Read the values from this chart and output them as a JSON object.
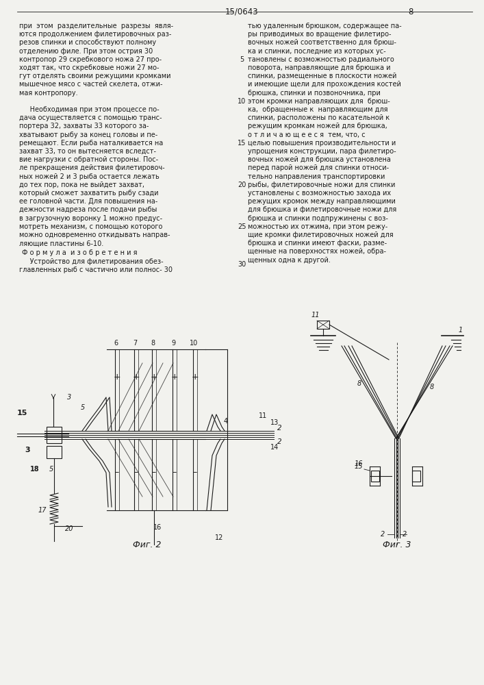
{
  "page_number": "15/0643",
  "page_num_right": "8",
  "bg_color": "#f2f2ee",
  "text_color": "#1a1a1a",
  "left_column_text": [
    "при  этом  разделительные  разрезы  явля-",
    "ются продолжением филетировочных раз-",
    "резов спинки и способствуют полному",
    "отделению филе. При этом острия 30",
    "контропор 29 скребкового ножа 27 про-",
    "ходят так, что скребковые ножи 27 мо-",
    "гут отделять своими режущими кромками",
    "мышечное мясо с частей скелета, отжи-",
    "мая контропору.",
    "",
    "     Необходимая при этом процессе по-",
    "дача осуществляется с помощью транс-",
    "портера 32, захваты 33 которого за-",
    "хватывают рыбу за конец головы и пе-",
    "ремещают. Если рыба наталкивается на",
    "захват 33, то он вытесняется вследст-",
    "вие нагрузки с обратной стороны. Пос-",
    "ле прекращения действия филетировоч-",
    "ных ножей 2 и 3 рыба остается лежать",
    "до тех пор, пока не выйдет захват,",
    "который сможет захватить рыбу сзади",
    "ее головной части. Для повышения на-",
    "дежности надреза после подачи рыбы",
    "в загрузочную воронку 1 можно предус-",
    "мотреть механизм, с помощью которого",
    "можно одновременно откидывать направ-"
  ],
  "left_last_line": "ляющие пластины 6-10.",
  "formula_header": "Ф о р м у л а  и з о б р е т е н и я",
  "formula_text": "     Устройство для филетирования обез-",
  "formula_text2": "главленных рыб с частично или полнос-",
  "right_column_text": [
    "тью удаленным брюшком, содержащее па-",
    "ры приводимых во вращение филетиро-",
    "вочных ножей соответственно для брюш-",
    "ка и спинки, последние из которых ус-",
    "тановлены с возможностью радиального",
    "поворота, направляющие для брюшка и",
    "спинки, размещенные в плоскости ножей",
    "и имеющие щели для прохождения костей",
    "брюшка, спинки и позвоночника, при",
    "этом кромки направляющих для  брюш-",
    "ка,  обращенные к  направляющим для",
    "спинки, расположены по касательной к",
    "режущим кромкам ножей для брюшка,",
    "о т л и ч а ю щ е е с я  тем, что, с",
    "целью повышения производительности и",
    "упрощения конструкции, пара филетиро-",
    "вочных ножей для брюшка установлена",
    "перед парой ножей для спинки относи-",
    "тельно направления транспортировки",
    "рыбы, филетировочные ножи для спинки",
    "установлены с возможностью захода их",
    "режущих кромок между направляющими",
    "для брюшка и филетировочные ножи для",
    "брюшка и спинки подпружинены с воз-",
    "можностью их отжима, при этом режу-"
  ],
  "right_last_lines": [
    "щие кромки филетировочных ножей для",
    "брюшка и спинки имеют фаски, разме-",
    "щенные на поверхностях ножей, обра-",
    "щенных одна к другой."
  ],
  "fig2_label": "Фиг. 2",
  "fig3_label": "Фиг. 3"
}
